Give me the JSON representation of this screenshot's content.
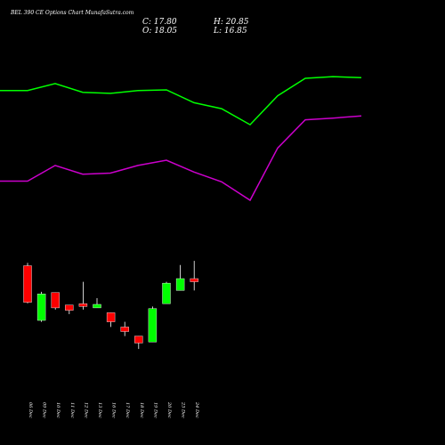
{
  "header": {
    "title": "BEL 390 CE Options Chart MunafaSutra.com",
    "close_text": "C: 17.80",
    "high_text": "H: 20.85",
    "open_text": "O: 18.05",
    "low_text": "L: 16.85"
  },
  "colors": {
    "background": "#000000",
    "up": "#00ff00",
    "down": "#ff0000",
    "upper_band": "#00ff00",
    "lower_band": "#cc00cc",
    "wick": "#ffffff"
  },
  "chart_data": {
    "type": "candlestick",
    "categories": [
      "06 Dec",
      "09 Dec",
      "10 Dec",
      "11 Dec",
      "12 Dec",
      "13 Dec",
      "16 Dec",
      "17 Dec",
      "18 Dec",
      "19 Dec",
      "20 Dec",
      "23 Dec",
      "24 Dec"
    ],
    "candles": [
      {
        "open": 38.7,
        "high": 39.5,
        "low": 27.9,
        "close": 28.2
      },
      {
        "open": 23.0,
        "high": 31.2,
        "low": 22.6,
        "close": 30.6
      },
      {
        "open": 31.0,
        "high": 31.0,
        "low": 26.1,
        "close": 26.6
      },
      {
        "open": 27.4,
        "high": 27.4,
        "low": 24.8,
        "close": 25.9
      },
      {
        "open": 27.8,
        "high": 34.1,
        "low": 26.1,
        "close": 27.0
      },
      {
        "open": 26.6,
        "high": 29.4,
        "low": 26.6,
        "close": 27.6
      },
      {
        "open": 25.2,
        "high": 25.2,
        "low": 21.1,
        "close": 22.6
      },
      {
        "open": 21.1,
        "high": 22.6,
        "low": 18.5,
        "close": 19.8
      },
      {
        "open": 18.5,
        "high": 18.5,
        "low": 14.8,
        "close": 16.5
      },
      {
        "open": 16.8,
        "high": 27.0,
        "low": 16.8,
        "close": 26.4
      },
      {
        "open": 27.8,
        "high": 34.1,
        "low": 27.8,
        "close": 33.7
      },
      {
        "open": 31.6,
        "high": 38.9,
        "low": 31.6,
        "close": 35.0
      },
      {
        "open": 35.0,
        "high": 40.1,
        "low": 31.6,
        "close": 34.1
      }
    ],
    "upper_band": [
      {
        "x": "06 Dec",
        "y": 89
      },
      {
        "x": "09 Dec",
        "y": 89
      },
      {
        "x": "10 Dec",
        "y": 91
      },
      {
        "x": "11 Dec",
        "y": 88.5
      },
      {
        "x": "13 Dec",
        "y": 88.2
      },
      {
        "x": "16 Dec",
        "y": 89
      },
      {
        "x": "18 Dec",
        "y": 89.2
      },
      {
        "x": "19 Dec",
        "y": 85.5
      },
      {
        "x": "20 Dec",
        "y": 83.8
      },
      {
        "x": "23 Dec",
        "y": 79.2
      },
      {
        "x": "24 Dec",
        "y": 87.5
      },
      {
        "x": "25 Dec",
        "y": 92.5
      },
      {
        "x": "26 Dec",
        "y": 93
      },
      {
        "x": "27 Dec",
        "y": 92.7
      }
    ],
    "lower_band": [
      {
        "x": "06 Dec",
        "y": 63
      },
      {
        "x": "09 Dec",
        "y": 63
      },
      {
        "x": "10 Dec",
        "y": 67.5
      },
      {
        "x": "11 Dec",
        "y": 65
      },
      {
        "x": "13 Dec",
        "y": 65.3
      },
      {
        "x": "16 Dec",
        "y": 67.5
      },
      {
        "x": "18 Dec",
        "y": 69
      },
      {
        "x": "19 Dec",
        "y": 65.6
      },
      {
        "x": "20 Dec",
        "y": 62.8
      },
      {
        "x": "23 Dec",
        "y": 57.5
      },
      {
        "x": "24 Dec",
        "y": 72.5
      },
      {
        "x": "25 Dec",
        "y": 80.6
      },
      {
        "x": "26 Dec",
        "y": 81.1
      },
      {
        "x": "27 Dec",
        "y": 81.7
      }
    ],
    "ylim": [
      0,
      115
    ],
    "grid": false
  }
}
